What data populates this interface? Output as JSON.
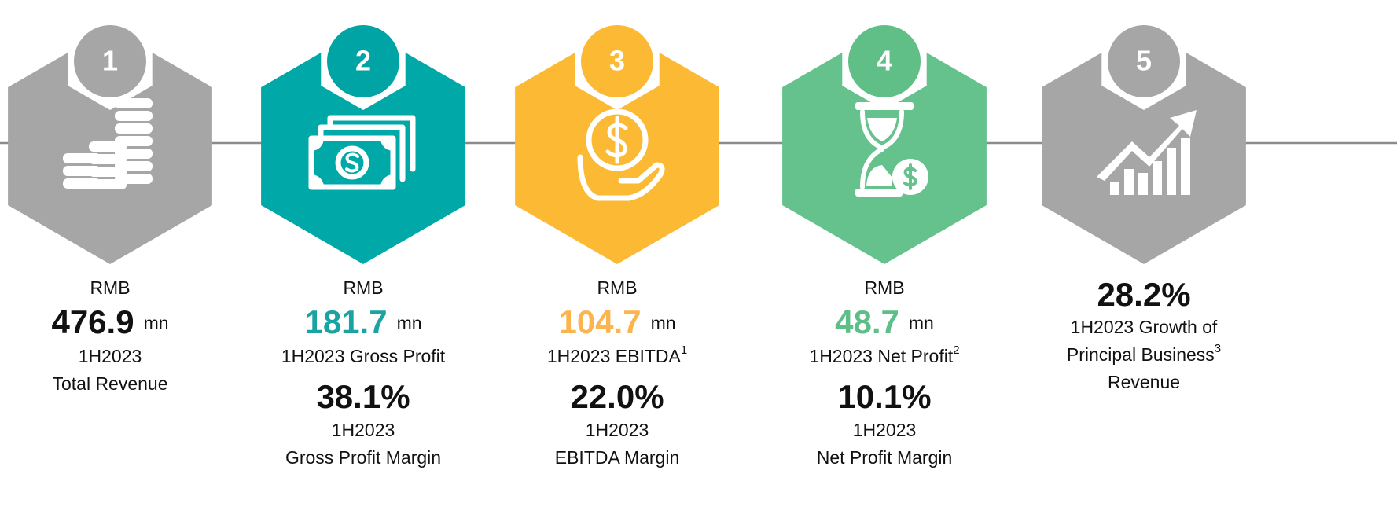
{
  "items": [
    {
      "badge": "1",
      "currency": "RMB",
      "value": "476.9",
      "unit": "mn",
      "label": [
        {
          "text": "1H2023"
        },
        {
          "text": "Total Revenue"
        }
      ]
    },
    {
      "badge": "2",
      "currency": "RMB",
      "value": "181.7",
      "unit": "mn",
      "label": [
        {
          "text": "1H2023 Gross Profit"
        }
      ],
      "margin": "38.1%",
      "margin_label": [
        {
          "text": "1H2023"
        },
        {
          "text": "Gross Profit Margin"
        }
      ]
    },
    {
      "badge": "3",
      "currency": "RMB",
      "value": "104.7",
      "unit": "mn",
      "label": [
        {
          "text": "1H2023 EBITDA",
          "note": "1"
        }
      ],
      "margin": "22.0%",
      "margin_label": [
        {
          "text": "1H2023"
        },
        {
          "text": "EBITDA Margin"
        }
      ]
    },
    {
      "badge": "4",
      "currency": "RMB",
      "value": "48.7",
      "unit": "mn",
      "label": [
        {
          "text": "1H2023 Net Profit",
          "note": "2"
        }
      ],
      "margin": "10.1%",
      "margin_label": [
        {
          "text": "1H2023"
        },
        {
          "text": "Net Profit Margin"
        }
      ]
    },
    {
      "badge": "5",
      "value": "28.2%",
      "label": [
        {
          "text": "1H2023 Growth of"
        },
        {
          "text": "Principal Business",
          "note": "3"
        },
        {
          "text": "Revenue"
        }
      ]
    }
  ]
}
